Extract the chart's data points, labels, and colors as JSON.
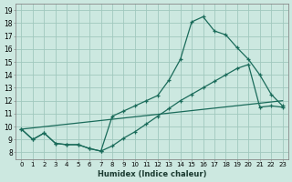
{
  "xlabel": "Humidex (Indice chaleur)",
  "bg_color": "#cce8e0",
  "grid_color": "#a0c8be",
  "line_color": "#1a6b5a",
  "xlim": [
    -0.5,
    23.5
  ],
  "ylim": [
    7.5,
    19.5
  ],
  "xticks": [
    0,
    1,
    2,
    3,
    4,
    5,
    6,
    7,
    8,
    9,
    10,
    11,
    12,
    13,
    14,
    15,
    16,
    17,
    18,
    19,
    20,
    21,
    22,
    23
  ],
  "yticks": [
    8,
    9,
    10,
    11,
    12,
    13,
    14,
    15,
    16,
    17,
    18,
    19
  ],
  "line1_x": [
    0,
    1,
    2,
    3,
    4,
    5,
    6,
    7,
    8,
    9,
    10,
    11,
    12,
    13,
    14,
    15,
    16,
    17,
    18,
    19,
    20,
    21,
    22,
    23
  ],
  "line1_y": [
    9.8,
    9.0,
    9.5,
    8.7,
    8.6,
    8.6,
    8.3,
    8.1,
    10.8,
    11.2,
    11.6,
    12.0,
    12.4,
    13.6,
    15.2,
    18.1,
    18.5,
    17.4,
    17.1,
    16.1,
    15.2,
    14.0,
    12.5,
    11.6
  ],
  "line2_x": [
    0,
    23
  ],
  "line2_y": [
    9.8,
    12.0
  ],
  "line3_x": [
    0,
    1,
    2,
    3,
    4,
    5,
    6,
    7,
    8,
    9,
    10,
    11,
    12,
    13,
    14,
    15,
    16,
    17,
    18,
    19,
    20,
    21,
    22,
    23
  ],
  "line3_y": [
    9.8,
    9.0,
    9.5,
    8.7,
    8.6,
    8.6,
    8.3,
    8.1,
    8.5,
    9.1,
    9.6,
    10.2,
    10.8,
    11.4,
    12.0,
    12.5,
    13.0,
    13.5,
    14.0,
    14.5,
    14.8,
    11.5,
    11.6,
    11.5
  ]
}
